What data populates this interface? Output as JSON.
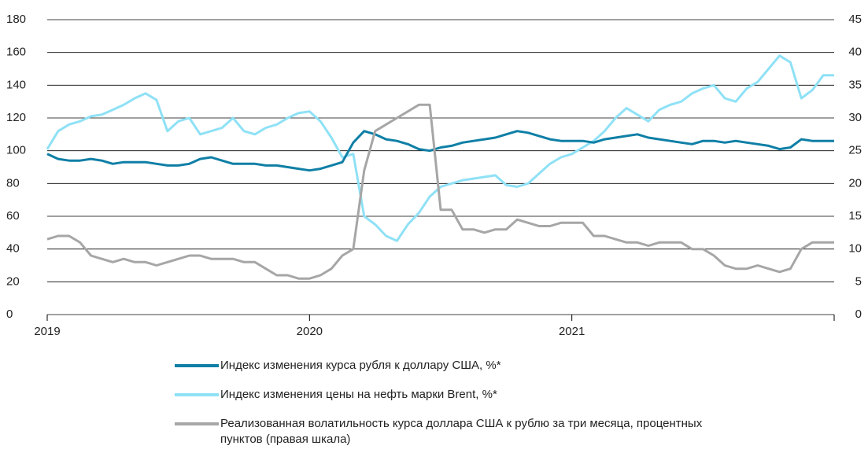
{
  "chart_data": {
    "type": "line",
    "categories": [
      "2019",
      null,
      null,
      null,
      null,
      null,
      null,
      null,
      null,
      null,
      null,
      null,
      null,
      null,
      null,
      null,
      null,
      null,
      null,
      null,
      null,
      null,
      null,
      null,
      "2020",
      null,
      null,
      null,
      null,
      null,
      null,
      null,
      null,
      null,
      null,
      null,
      null,
      null,
      null,
      null,
      null,
      null,
      null,
      null,
      null,
      null,
      null,
      null,
      "2021",
      null,
      null,
      null,
      null,
      null,
      null,
      null,
      null,
      null,
      null,
      null,
      null,
      null,
      null,
      null,
      null,
      null,
      null,
      null,
      null,
      null,
      null,
      null,
      null
    ],
    "series": [
      {
        "name": "Индекс изменения цены на нефть марки Brent, %*",
        "color": "#8fe1f6",
        "values": [
          101,
          112,
          116,
          118,
          121,
          122,
          125,
          128,
          132,
          135,
          131,
          112,
          118,
          120,
          110,
          112,
          114,
          120,
          112,
          110,
          114,
          116,
          120,
          123,
          124,
          118,
          108,
          96,
          98,
          60,
          55,
          48,
          45,
          55,
          62,
          72,
          78,
          80,
          82,
          83,
          84,
          85,
          79,
          78,
          80,
          86,
          92,
          96,
          98,
          102,
          106,
          112,
          120,
          126,
          122,
          118,
          125,
          128,
          130,
          135,
          138,
          140,
          132,
          130,
          138,
          142,
          150,
          158,
          154,
          132,
          137,
          146,
          146
        ]
      },
      {
        "name": "Индекс изменения курса рубля к доллару США, %*",
        "color": "#0f7fa6",
        "values": [
          98,
          95,
          94,
          94,
          95,
          94,
          92,
          93,
          93,
          93,
          92,
          91,
          91,
          92,
          95,
          96,
          94,
          92,
          92,
          92,
          91,
          91,
          90,
          89,
          88,
          89,
          91,
          93,
          105,
          112,
          110,
          107,
          106,
          104,
          101,
          100,
          102,
          103,
          105,
          106,
          107,
          108,
          110,
          112,
          111,
          109,
          107,
          106,
          106,
          106,
          105,
          107,
          108,
          109,
          110,
          108,
          107,
          106,
          105,
          104,
          106,
          106,
          105,
          106,
          105,
          104,
          103,
          101,
          102,
          107,
          106,
          106,
          106
        ]
      },
      {
        "name": "Реализованная волатильность курса доллара США к рублю за три месяца, процентных пунктов (правая шкала)",
        "color": "#a6a6a6",
        "axis": "y2",
        "values": [
          11.5,
          12,
          12,
          11,
          9,
          8.5,
          8,
          8.5,
          8,
          8,
          7.5,
          8,
          8.5,
          9,
          9,
          8.5,
          8.5,
          8.5,
          8,
          8,
          7,
          6,
          6,
          5.5,
          5.5,
          6,
          7,
          9,
          10,
          22,
          28,
          29,
          30,
          31,
          32,
          32,
          16,
          16,
          13,
          13,
          12.5,
          13,
          13,
          14.5,
          14,
          13.5,
          13.5,
          14,
          14,
          14,
          12,
          12,
          11.5,
          11,
          11,
          10.5,
          11,
          11,
          11,
          10,
          10,
          9,
          7.5,
          7,
          7,
          7.5,
          7,
          6.5,
          7,
          10,
          11,
          11,
          11
        ]
      }
    ],
    "ylim": [
      0,
      180
    ],
    "yticks": [
      0,
      20,
      40,
      60,
      80,
      100,
      120,
      140,
      160,
      180
    ],
    "y2lim": [
      0,
      45
    ],
    "y2ticks": [
      0,
      5,
      10,
      15,
      20,
      25,
      30,
      35,
      40,
      45
    ],
    "grid": true,
    "legend": "bottom"
  }
}
